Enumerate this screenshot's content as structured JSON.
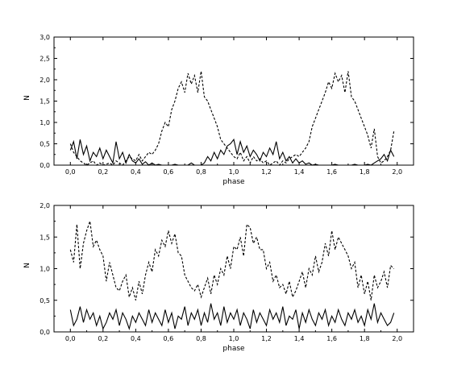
{
  "chart_data": [
    {
      "type": "line",
      "title": "",
      "xlabel": "phase",
      "ylabel": "N",
      "xlim": [
        -0.1,
        2.1
      ],
      "ylim": [
        0.0,
        3.0
      ],
      "xticks": [
        "0,0",
        "0,2",
        "0,4",
        "0,6",
        "0,8",
        "1,0",
        "1,2",
        "1,4",
        "1,6",
        "1,8",
        "2,0"
      ],
      "yticks": [
        "0,0",
        "0,5",
        "1,0",
        "1,5",
        "2,0",
        "2,5",
        "3,0"
      ],
      "grid": false,
      "series": [
        {
          "style": "solid",
          "color": "#000000",
          "x": [
            0.0,
            0.02,
            0.04,
            0.06,
            0.08,
            0.1,
            0.12,
            0.14,
            0.16,
            0.18,
            0.2,
            0.22,
            0.24,
            0.26,
            0.28,
            0.3,
            0.32,
            0.34,
            0.36,
            0.38,
            0.4,
            0.42,
            0.44,
            0.46,
            0.48,
            0.5,
            0.52,
            0.54,
            0.56,
            0.58,
            0.6,
            0.62,
            0.64,
            0.66,
            0.68,
            0.7,
            0.72,
            0.74,
            0.76,
            0.78,
            0.8,
            0.82,
            0.84,
            0.86,
            0.88,
            0.9,
            0.92,
            0.94,
            0.96,
            0.98,
            1.0,
            1.02,
            1.04,
            1.06,
            1.08,
            1.1,
            1.12,
            1.14,
            1.16,
            1.18,
            1.2,
            1.22,
            1.24,
            1.26,
            1.28,
            1.3,
            1.32,
            1.34,
            1.36,
            1.38,
            1.4,
            1.42,
            1.44,
            1.46,
            1.48,
            1.5,
            1.52,
            1.54,
            1.56,
            1.58,
            1.6,
            1.62,
            1.64,
            1.66,
            1.68,
            1.7,
            1.72,
            1.74,
            1.76,
            1.78,
            1.8,
            1.82,
            1.84,
            1.86,
            1.88,
            1.9,
            1.92,
            1.94,
            1.96,
            1.98
          ],
          "y": [
            0.35,
            0.55,
            0.15,
            0.6,
            0.25,
            0.45,
            0.1,
            0.3,
            0.2,
            0.4,
            0.15,
            0.35,
            0.2,
            0.05,
            0.55,
            0.15,
            0.3,
            0.05,
            0.25,
            0.1,
            0.05,
            0.15,
            0.02,
            0.08,
            0.0,
            0.05,
            0.0,
            0.02,
            0.0,
            0.0,
            0.0,
            0.0,
            0.02,
            0.0,
            0.0,
            0.0,
            0.0,
            0.05,
            0.0,
            0.0,
            0.0,
            0.05,
            0.2,
            0.1,
            0.3,
            0.15,
            0.35,
            0.25,
            0.45,
            0.5,
            0.6,
            0.25,
            0.55,
            0.3,
            0.45,
            0.2,
            0.35,
            0.25,
            0.1,
            0.3,
            0.2,
            0.4,
            0.25,
            0.55,
            0.15,
            0.3,
            0.1,
            0.2,
            0.05,
            0.15,
            0.05,
            0.1,
            0.02,
            0.05,
            0.0,
            0.02,
            0.0,
            0.0,
            0.0,
            0.0,
            0.0,
            0.02,
            0.0,
            0.0,
            0.0,
            0.0,
            0.0,
            0.02,
            0.0,
            0.0,
            0.0,
            0.02,
            0.0,
            0.05,
            0.1,
            0.15,
            0.25,
            0.1,
            0.35,
            0.2
          ]
        },
        {
          "style": "dashed",
          "color": "#000000",
          "x": [
            0.0,
            0.02,
            0.04,
            0.06,
            0.08,
            0.1,
            0.12,
            0.14,
            0.16,
            0.18,
            0.2,
            0.22,
            0.24,
            0.26,
            0.28,
            0.3,
            0.32,
            0.34,
            0.36,
            0.38,
            0.4,
            0.42,
            0.44,
            0.46,
            0.48,
            0.5,
            0.52,
            0.54,
            0.56,
            0.58,
            0.6,
            0.62,
            0.64,
            0.66,
            0.68,
            0.7,
            0.72,
            0.74,
            0.76,
            0.78,
            0.8,
            0.82,
            0.84,
            0.86,
            0.88,
            0.9,
            0.92,
            0.94,
            0.96,
            0.98,
            1.0,
            1.02,
            1.04,
            1.06,
            1.08,
            1.1,
            1.12,
            1.14,
            1.16,
            1.18,
            1.2,
            1.22,
            1.24,
            1.26,
            1.28,
            1.3,
            1.32,
            1.34,
            1.36,
            1.38,
            1.4,
            1.42,
            1.44,
            1.46,
            1.48,
            1.5,
            1.52,
            1.54,
            1.56,
            1.58,
            1.6,
            1.62,
            1.64,
            1.66,
            1.68,
            1.7,
            1.72,
            1.74,
            1.76,
            1.78,
            1.8,
            1.82,
            1.84,
            1.86,
            1.88,
            1.9,
            1.92,
            1.94,
            1.96,
            1.98
          ],
          "y": [
            0.5,
            0.3,
            0.2,
            0.1,
            0.05,
            0.0,
            0.05,
            0.1,
            0.0,
            0.05,
            0.0,
            0.02,
            0.05,
            0.0,
            0.1,
            0.05,
            0.0,
            0.1,
            0.2,
            0.15,
            0.1,
            0.25,
            0.1,
            0.2,
            0.3,
            0.25,
            0.35,
            0.5,
            0.8,
            1.0,
            0.9,
            1.3,
            1.5,
            1.8,
            1.95,
            1.7,
            2.15,
            1.9,
            2.1,
            1.7,
            2.2,
            1.6,
            1.5,
            1.3,
            1.1,
            0.9,
            0.6,
            0.5,
            0.4,
            0.3,
            0.2,
            0.15,
            0.3,
            0.1,
            0.2,
            0.05,
            0.2,
            0.1,
            0.15,
            0.05,
            0.1,
            0.0,
            0.05,
            0.1,
            0.0,
            0.1,
            0.05,
            0.15,
            0.2,
            0.25,
            0.2,
            0.3,
            0.4,
            0.55,
            0.9,
            1.1,
            1.3,
            1.5,
            1.7,
            1.95,
            1.8,
            2.15,
            1.95,
            2.1,
            1.7,
            2.2,
            1.6,
            1.5,
            1.3,
            1.1,
            0.9,
            0.7,
            0.4,
            0.85,
            0.2,
            0.05,
            0.1,
            0.2,
            0.35,
            0.8
          ]
        }
      ]
    },
    {
      "type": "line",
      "title": "",
      "xlabel": "phase",
      "ylabel": "N",
      "xlim": [
        -0.1,
        2.1
      ],
      "ylim": [
        0.0,
        2.0
      ],
      "xticks": [
        "0,0",
        "0,2",
        "0,4",
        "0,6",
        "0,8",
        "1,0",
        "1,2",
        "1,4",
        "1,6",
        "1,8",
        "2,0"
      ],
      "yticks": [
        "0,0",
        "0,5",
        "1,0",
        "1,5",
        "2,0"
      ],
      "grid": false,
      "series": [
        {
          "style": "solid",
          "color": "#000000",
          "x": [
            0.0,
            0.02,
            0.04,
            0.06,
            0.08,
            0.1,
            0.12,
            0.14,
            0.16,
            0.18,
            0.2,
            0.22,
            0.24,
            0.26,
            0.28,
            0.3,
            0.32,
            0.34,
            0.36,
            0.38,
            0.4,
            0.42,
            0.44,
            0.46,
            0.48,
            0.5,
            0.52,
            0.54,
            0.56,
            0.58,
            0.6,
            0.62,
            0.64,
            0.66,
            0.68,
            0.7,
            0.72,
            0.74,
            0.76,
            0.78,
            0.8,
            0.82,
            0.84,
            0.86,
            0.88,
            0.9,
            0.92,
            0.94,
            0.96,
            0.98,
            1.0,
            1.02,
            1.04,
            1.06,
            1.08,
            1.1,
            1.12,
            1.14,
            1.16,
            1.18,
            1.2,
            1.22,
            1.24,
            1.26,
            1.28,
            1.3,
            1.32,
            1.34,
            1.36,
            1.38,
            1.4,
            1.42,
            1.44,
            1.46,
            1.48,
            1.5,
            1.52,
            1.54,
            1.56,
            1.58,
            1.6,
            1.62,
            1.64,
            1.66,
            1.68,
            1.7,
            1.72,
            1.74,
            1.76,
            1.78,
            1.8,
            1.82,
            1.84,
            1.86,
            1.88,
            1.9,
            1.92,
            1.94,
            1.96,
            1.98
          ],
          "y": [
            0.35,
            0.1,
            0.2,
            0.4,
            0.15,
            0.35,
            0.2,
            0.3,
            0.1,
            0.25,
            0.05,
            0.15,
            0.3,
            0.2,
            0.35,
            0.1,
            0.3,
            0.2,
            0.05,
            0.25,
            0.15,
            0.3,
            0.2,
            0.1,
            0.35,
            0.15,
            0.3,
            0.2,
            0.1,
            0.35,
            0.15,
            0.3,
            0.05,
            0.25,
            0.2,
            0.4,
            0.1,
            0.3,
            0.2,
            0.35,
            0.1,
            0.3,
            0.15,
            0.45,
            0.2,
            0.3,
            0.1,
            0.4,
            0.15,
            0.3,
            0.2,
            0.35,
            0.1,
            0.3,
            0.2,
            0.05,
            0.35,
            0.15,
            0.3,
            0.2,
            0.1,
            0.35,
            0.2,
            0.3,
            0.15,
            0.4,
            0.1,
            0.25,
            0.2,
            0.35,
            0.05,
            0.3,
            0.15,
            0.35,
            0.2,
            0.1,
            0.3,
            0.2,
            0.35,
            0.1,
            0.25,
            0.15,
            0.35,
            0.2,
            0.1,
            0.3,
            0.2,
            0.35,
            0.15,
            0.25,
            0.1,
            0.35,
            0.2,
            0.45,
            0.15,
            0.3,
            0.2,
            0.1,
            0.15,
            0.3
          ]
        },
        {
          "style": "dashed",
          "color": "#000000",
          "x": [
            0.0,
            0.02,
            0.04,
            0.06,
            0.08,
            0.1,
            0.12,
            0.14,
            0.16,
            0.18,
            0.2,
            0.22,
            0.24,
            0.26,
            0.28,
            0.3,
            0.32,
            0.34,
            0.36,
            0.38,
            0.4,
            0.42,
            0.44,
            0.46,
            0.48,
            0.5,
            0.52,
            0.54,
            0.56,
            0.58,
            0.6,
            0.62,
            0.64,
            0.66,
            0.68,
            0.7,
            0.72,
            0.74,
            0.76,
            0.78,
            0.8,
            0.82,
            0.84,
            0.86,
            0.88,
            0.9,
            0.92,
            0.94,
            0.96,
            0.98,
            1.0,
            1.02,
            1.04,
            1.06,
            1.08,
            1.1,
            1.12,
            1.14,
            1.16,
            1.18,
            1.2,
            1.22,
            1.24,
            1.26,
            1.28,
            1.3,
            1.32,
            1.34,
            1.36,
            1.38,
            1.4,
            1.42,
            1.44,
            1.46,
            1.48,
            1.5,
            1.52,
            1.54,
            1.56,
            1.58,
            1.6,
            1.62,
            1.64,
            1.66,
            1.68,
            1.7,
            1.72,
            1.74,
            1.76,
            1.78,
            1.8,
            1.82,
            1.84,
            1.86,
            1.88,
            1.9,
            1.92,
            1.94,
            1.96,
            1.98
          ],
          "y": [
            1.3,
            1.1,
            1.7,
            1.0,
            1.4,
            1.6,
            1.75,
            1.35,
            1.45,
            1.3,
            1.2,
            0.8,
            1.1,
            0.9,
            0.7,
            0.65,
            0.8,
            0.9,
            0.55,
            0.7,
            0.5,
            0.8,
            0.6,
            0.9,
            1.1,
            0.95,
            1.3,
            1.2,
            1.45,
            1.35,
            1.6,
            1.4,
            1.55,
            1.25,
            1.2,
            0.9,
            0.8,
            0.7,
            0.65,
            0.75,
            0.55,
            0.7,
            0.85,
            0.6,
            0.9,
            0.75,
            1.0,
            0.9,
            1.2,
            1.0,
            1.35,
            1.3,
            1.5,
            1.2,
            1.7,
            1.65,
            1.4,
            1.5,
            1.3,
            1.3,
            1.0,
            1.1,
            0.8,
            0.9,
            0.7,
            0.75,
            0.6,
            0.8,
            0.55,
            0.65,
            0.8,
            0.95,
            0.7,
            1.0,
            0.9,
            1.2,
            0.95,
            1.1,
            1.4,
            1.2,
            1.6,
            1.3,
            1.5,
            1.4,
            1.3,
            1.2,
            1.0,
            1.1,
            0.7,
            0.9,
            0.6,
            0.8,
            0.5,
            0.9,
            0.7,
            0.8,
            0.95,
            0.7,
            1.05,
            1.0
          ]
        }
      ]
    }
  ]
}
